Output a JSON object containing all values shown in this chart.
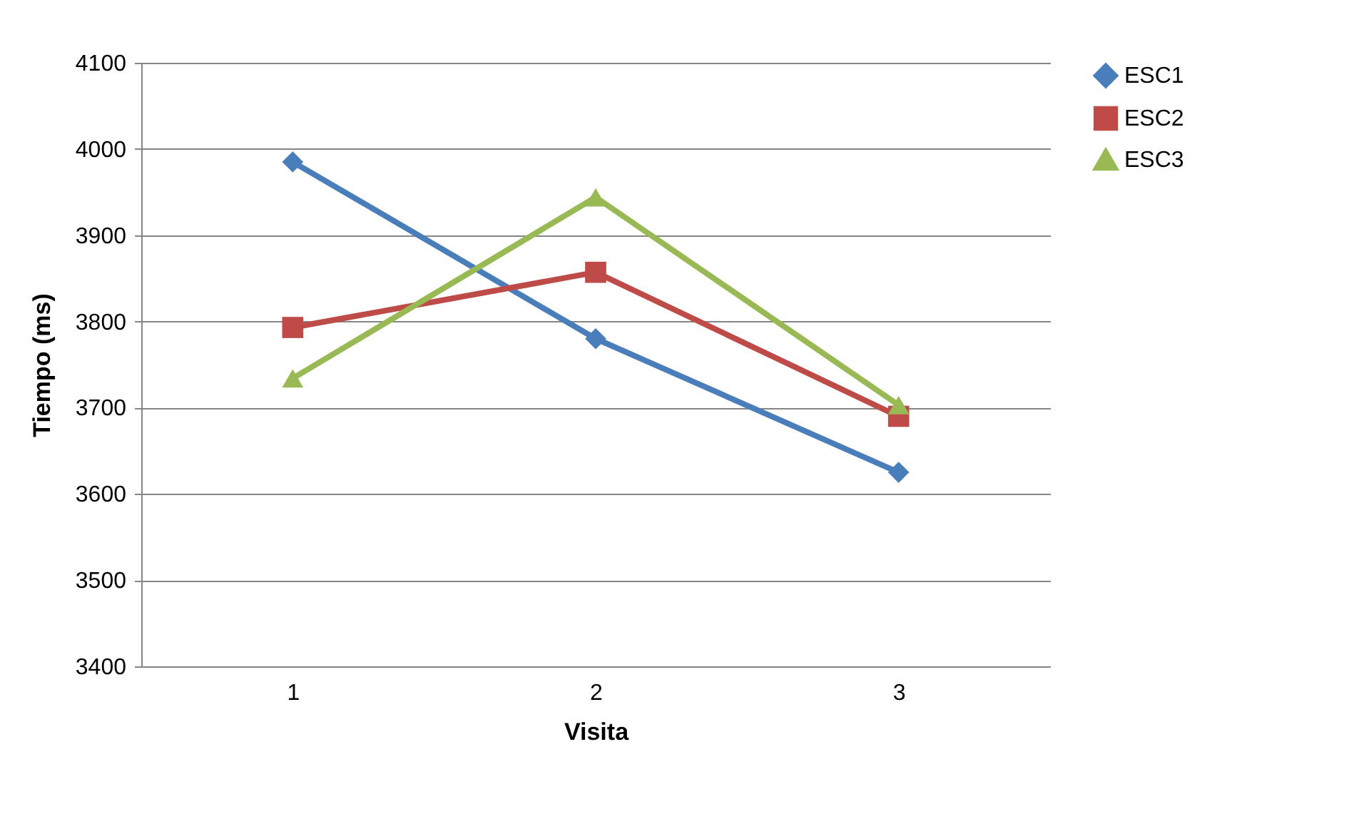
{
  "chart_data": {
    "type": "line",
    "xlabel": "Visita",
    "ylabel": "Tiempo (ms)",
    "categories": [
      "1",
      "2",
      "3"
    ],
    "series": [
      {
        "name": "ESC1",
        "color": "#4a7ebb",
        "marker": "diamond",
        "values": [
          3985,
          3780,
          3625
        ]
      },
      {
        "name": "ESC2",
        "color": "#be4b48",
        "marker": "square",
        "values": [
          3793,
          3857,
          3690
        ]
      },
      {
        "name": "ESC3",
        "color": "#98b954",
        "marker": "triangle",
        "values": [
          3734,
          3944,
          3703
        ]
      }
    ],
    "ylim": [
      3400,
      4100
    ],
    "yticks": [
      3400,
      3500,
      3600,
      3700,
      3800,
      3900,
      4000,
      4100
    ],
    "grid": "y",
    "legend": "right",
    "line_style": "solid"
  }
}
